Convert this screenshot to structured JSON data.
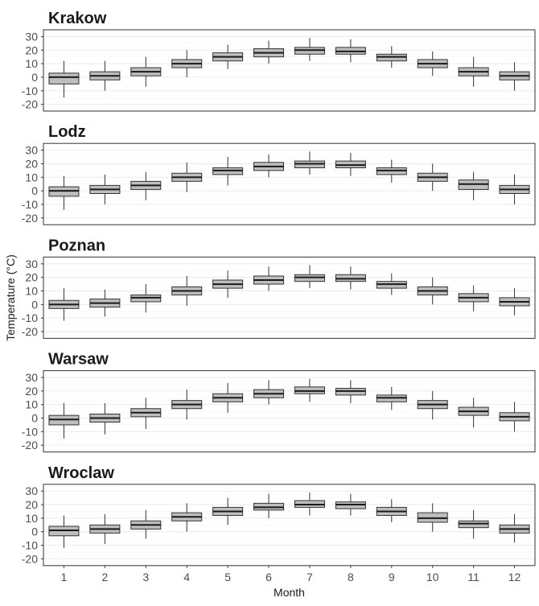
{
  "chart_data": {
    "type": "boxplot",
    "xlabel": "Month",
    "ylabel": "Temperature (°C)",
    "ylim": [
      -25,
      35
    ],
    "yticks": [
      -20,
      -10,
      0,
      10,
      20,
      30
    ],
    "months": [
      "1",
      "2",
      "3",
      "4",
      "5",
      "6",
      "7",
      "8",
      "9",
      "10",
      "11",
      "12"
    ],
    "colors": {
      "box_fill": "#bebebe",
      "box_stroke": "#333333",
      "grid": "#ebebeb",
      "panel_border": "#333333"
    },
    "grid": true,
    "panels": [
      {
        "name": "Krakow",
        "boxes": [
          {
            "month": 1,
            "low": -15,
            "q1": -5,
            "median": 0,
            "q3": 3,
            "high": 12
          },
          {
            "month": 2,
            "low": -10,
            "q1": -2,
            "median": 1,
            "q3": 4,
            "high": 12
          },
          {
            "month": 3,
            "low": -7,
            "q1": 1,
            "median": 4,
            "q3": 7,
            "high": 15
          },
          {
            "month": 4,
            "low": 0,
            "q1": 7,
            "median": 10,
            "q3": 13,
            "high": 20
          },
          {
            "month": 5,
            "low": 6,
            "q1": 12,
            "median": 15,
            "q3": 18,
            "high": 24
          },
          {
            "month": 6,
            "low": 10,
            "q1": 15,
            "median": 18,
            "q3": 21,
            "high": 27
          },
          {
            "month": 7,
            "low": 12,
            "q1": 17,
            "median": 20,
            "q3": 22,
            "high": 29
          },
          {
            "month": 8,
            "low": 11,
            "q1": 17,
            "median": 19,
            "q3": 22,
            "high": 28
          },
          {
            "month": 9,
            "low": 7,
            "q1": 12,
            "median": 15,
            "q3": 17,
            "high": 23
          },
          {
            "month": 10,
            "low": 1,
            "q1": 7,
            "median": 10,
            "q3": 13,
            "high": 19
          },
          {
            "month": 11,
            "low": -7,
            "q1": 1,
            "median": 4,
            "q3": 7,
            "high": 15
          },
          {
            "month": 12,
            "low": -10,
            "q1": -2,
            "median": 1,
            "q3": 4,
            "high": 11
          }
        ]
      },
      {
        "name": "Lodz",
        "boxes": [
          {
            "month": 1,
            "low": -14,
            "q1": -4,
            "median": 0,
            "q3": 3,
            "high": 11
          },
          {
            "month": 2,
            "low": -10,
            "q1": -2,
            "median": 1,
            "q3": 4,
            "high": 12
          },
          {
            "month": 3,
            "low": -7,
            "q1": 1,
            "median": 4,
            "q3": 7,
            "high": 14
          },
          {
            "month": 4,
            "low": -1,
            "q1": 7,
            "median": 10,
            "q3": 13,
            "high": 21
          },
          {
            "month": 5,
            "low": 4,
            "q1": 12,
            "median": 15,
            "q3": 17,
            "high": 25
          },
          {
            "month": 6,
            "low": 10,
            "q1": 15,
            "median": 18,
            "q3": 21,
            "high": 27
          },
          {
            "month": 7,
            "low": 12,
            "q1": 17,
            "median": 20,
            "q3": 22,
            "high": 29
          },
          {
            "month": 8,
            "low": 11,
            "q1": 17,
            "median": 19,
            "q3": 22,
            "high": 28
          },
          {
            "month": 9,
            "low": 6,
            "q1": 12,
            "median": 15,
            "q3": 17,
            "high": 23
          },
          {
            "month": 10,
            "low": 0,
            "q1": 7,
            "median": 10,
            "q3": 13,
            "high": 20
          },
          {
            "month": 11,
            "low": -7,
            "q1": 1,
            "median": 5,
            "q3": 8,
            "high": 14
          },
          {
            "month": 12,
            "low": -10,
            "q1": -2,
            "median": 1,
            "q3": 4,
            "high": 12
          }
        ]
      },
      {
        "name": "Poznan",
        "boxes": [
          {
            "month": 1,
            "low": -12,
            "q1": -3,
            "median": 0,
            "q3": 3,
            "high": 12
          },
          {
            "month": 2,
            "low": -9,
            "q1": -2,
            "median": 1,
            "q3": 4,
            "high": 11
          },
          {
            "month": 3,
            "low": -6,
            "q1": 2,
            "median": 5,
            "q3": 7,
            "high": 15
          },
          {
            "month": 4,
            "low": -1,
            "q1": 7,
            "median": 10,
            "q3": 13,
            "high": 21
          },
          {
            "month": 5,
            "low": 5,
            "q1": 12,
            "median": 15,
            "q3": 18,
            "high": 25
          },
          {
            "month": 6,
            "low": 10,
            "q1": 15,
            "median": 18,
            "q3": 21,
            "high": 28
          },
          {
            "month": 7,
            "low": 12,
            "q1": 17,
            "median": 20,
            "q3": 22,
            "high": 29
          },
          {
            "month": 8,
            "low": 11,
            "q1": 17,
            "median": 19,
            "q3": 22,
            "high": 28
          },
          {
            "month": 9,
            "low": 7,
            "q1": 12,
            "median": 15,
            "q3": 17,
            "high": 23
          },
          {
            "month": 10,
            "low": 0,
            "q1": 7,
            "median": 10,
            "q3": 13,
            "high": 20
          },
          {
            "month": 11,
            "low": -5,
            "q1": 2,
            "median": 5,
            "q3": 8,
            "high": 14
          },
          {
            "month": 12,
            "low": -8,
            "q1": -1,
            "median": 2,
            "q3": 5,
            "high": 12
          }
        ]
      },
      {
        "name": "Warsaw",
        "boxes": [
          {
            "month": 1,
            "low": -15,
            "q1": -5,
            "median": -1,
            "q3": 2,
            "high": 11
          },
          {
            "month": 2,
            "low": -12,
            "q1": -3,
            "median": 0,
            "q3": 3,
            "high": 11
          },
          {
            "month": 3,
            "low": -8,
            "q1": 1,
            "median": 4,
            "q3": 7,
            "high": 15
          },
          {
            "month": 4,
            "low": -1,
            "q1": 7,
            "median": 10,
            "q3": 13,
            "high": 21
          },
          {
            "month": 5,
            "low": 4,
            "q1": 12,
            "median": 15,
            "q3": 18,
            "high": 26
          },
          {
            "month": 6,
            "low": 10,
            "q1": 15,
            "median": 18,
            "q3": 21,
            "high": 28
          },
          {
            "month": 7,
            "low": 12,
            "q1": 18,
            "median": 20,
            "q3": 23,
            "high": 29
          },
          {
            "month": 8,
            "low": 11,
            "q1": 17,
            "median": 20,
            "q3": 22,
            "high": 28
          },
          {
            "month": 9,
            "low": 6,
            "q1": 12,
            "median": 15,
            "q3": 17,
            "high": 23
          },
          {
            "month": 10,
            "low": -1,
            "q1": 7,
            "median": 10,
            "q3": 13,
            "high": 20
          },
          {
            "month": 11,
            "low": -7,
            "q1": 2,
            "median": 5,
            "q3": 8,
            "high": 15
          },
          {
            "month": 12,
            "low": -10,
            "q1": -2,
            "median": 1,
            "q3": 4,
            "high": 12
          }
        ]
      },
      {
        "name": "Wroclaw",
        "boxes": [
          {
            "month": 1,
            "low": -12,
            "q1": -3,
            "median": 1,
            "q3": 4,
            "high": 12
          },
          {
            "month": 2,
            "low": -9,
            "q1": -1,
            "median": 2,
            "q3": 5,
            "high": 13
          },
          {
            "month": 3,
            "low": -5,
            "q1": 2,
            "median": 5,
            "q3": 8,
            "high": 16
          },
          {
            "month": 4,
            "low": 0,
            "q1": 8,
            "median": 11,
            "q3": 14,
            "high": 21
          },
          {
            "month": 5,
            "low": 5,
            "q1": 12,
            "median": 15,
            "q3": 18,
            "high": 25
          },
          {
            "month": 6,
            "low": 10,
            "q1": 16,
            "median": 18,
            "q3": 21,
            "high": 28
          },
          {
            "month": 7,
            "low": 12,
            "q1": 18,
            "median": 20,
            "q3": 23,
            "high": 29
          },
          {
            "month": 8,
            "low": 12,
            "q1": 17,
            "median": 20,
            "q3": 22,
            "high": 28
          },
          {
            "month": 9,
            "low": 7,
            "q1": 12,
            "median": 15,
            "q3": 18,
            "high": 24
          },
          {
            "month": 10,
            "low": 0,
            "q1": 7,
            "median": 10,
            "q3": 14,
            "high": 21
          },
          {
            "month": 11,
            "low": -5,
            "q1": 3,
            "median": 6,
            "q3": 8,
            "high": 16
          },
          {
            "month": 12,
            "low": -8,
            "q1": -1,
            "median": 2,
            "q3": 5,
            "high": 13
          }
        ]
      }
    ]
  }
}
